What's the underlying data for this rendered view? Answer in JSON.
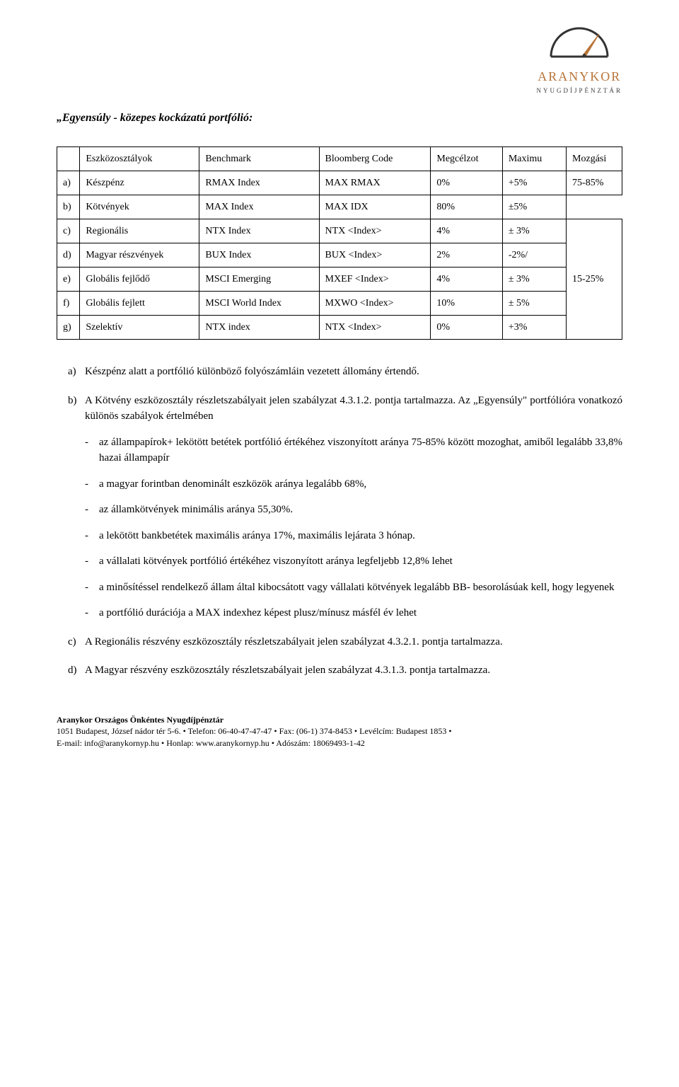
{
  "logo": {
    "line1": "ARANYKOR",
    "line2": "NYUGDÍJPÉNZTÁR"
  },
  "title": "„Egyensúly - közepes kockázatú portfólió:",
  "table": {
    "headers": [
      "",
      "Eszközosztályok",
      "Benchmark",
      "Bloomberg Code",
      "Megcélzot",
      "Maximu",
      "Mozgási"
    ],
    "rows": [
      {
        "lbl": "a)",
        "asset": "Készpénz",
        "bench": "RMAX Index",
        "bloom": "MAX RMAX",
        "target": "0%",
        "max": "+5%",
        "mozg": "75-85%",
        "mozg_rowspan": 1
      },
      {
        "lbl": "b)",
        "asset": "Kötvények",
        "bench": "MAX Index",
        "bloom": "MAX IDX",
        "target": "80%",
        "max": "±5%"
      },
      {
        "lbl": "c)",
        "asset": "Regionális",
        "bench": "NTX Index",
        "bloom": "NTX <Index>",
        "target": "4%",
        "max": "± 3%",
        "mozg": "15-25%",
        "mozg_rowspan": 5
      },
      {
        "lbl": "d)",
        "asset": "Magyar részvények",
        "bench": "BUX Index",
        "bloom": "BUX <Index>",
        "target": "2%",
        "max": "-2%/"
      },
      {
        "lbl": "e)",
        "asset": "Globális fejlődő",
        "bench": "MSCI Emerging",
        "bloom": "MXEF <Index>",
        "target": "4%",
        "max": "± 3%"
      },
      {
        "lbl": "f)",
        "asset": "Globális fejlett",
        "bench": "MSCI World Index",
        "bloom": "MXWO <Index>",
        "target": "10%",
        "max": "± 5%"
      },
      {
        "lbl": "g)",
        "asset": "Szelektív",
        "bench": "NTX index",
        "bloom": "NTX <Index>",
        "target": "0%",
        "max": "+3%"
      }
    ]
  },
  "items": {
    "a": "Készpénz alatt a portfólió különböző folyószámláin vezetett állomány értendő.",
    "b_lead": "A Kötvény eszközosztály részletszabályait jelen szabályzat 4.3.1.2. pontja tartalmazza. Az „Egyensúly\" portfólióra vonatkozó különös szabályok értelmében",
    "b_sub": [
      "az állampapírok+ lekötött betétek portfólió értékéhez viszonyított aránya 75-85% között mozoghat, amiből legalább 33,8% hazai állampapír",
      "a magyar forintban denominált eszközök aránya legalább 68%,",
      "az államkötvények minimális aránya 55,30%.",
      "a lekötött bankbetétek maximális aránya 17%, maximális lejárata 3 hónap.",
      "a vállalati kötvények portfólió értékéhez viszonyított aránya legfeljebb 12,8% lehet",
      "a minősítéssel rendelkező állam által kibocsátott vagy vállalati kötvények legalább BB- besorolásúak kell, hogy legyenek",
      "a portfólió durációja a MAX indexhez képest plusz/mínusz másfél év lehet"
    ],
    "c": "A Regionális részvény eszközosztály részletszabályait jelen szabályzat 4.3.2.1. pontja tartalmazza.",
    "d": "A Magyar részvény eszközosztály részletszabályait jelen szabályzat 4.3.1.3. pontja tartalmazza."
  },
  "footer": {
    "line1": "Aranykor Országos Önkéntes Nyugdíjpénztár",
    "line2": "1051 Budapest, József nádor tér 5-6. • Telefon: 06-40-47-47-47 • Fax: (06-1) 374-8453 • Levélcím: Budapest 1853 •",
    "line3": "E-mail: info@aranykornyp.hu • Honlap: www.aranykornyp.hu • Adószám: 18069493-1-42"
  }
}
